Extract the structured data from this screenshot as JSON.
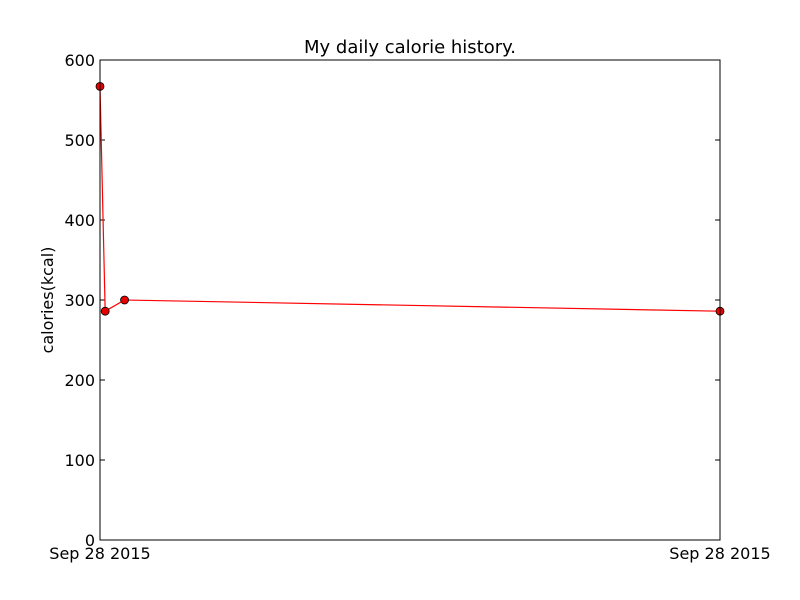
{
  "chart_data": {
    "type": "line",
    "title": "My daily calorie history.",
    "xlabel": "",
    "ylabel": "calories(kcal)",
    "ylim": [
      0,
      600
    ],
    "yticks": [
      0,
      100,
      200,
      300,
      400,
      500,
      600
    ],
    "xlim": [
      "2015-09-28T00:00:00",
      "2015-09-28T23:59:00"
    ],
    "xticks": [
      {
        "value": "2015-09-28T00:00:00",
        "label": "Sep 28 2015"
      },
      {
        "value": "2015-09-28T23:59:00",
        "label": "Sep 28 2015"
      }
    ],
    "grid": false,
    "series": [
      {
        "color": "#ff0000",
        "marker_color": "#e60000",
        "x": [
          "2015-09-28T00:00:00",
          "2015-09-28T00:12:00",
          "2015-09-28T00:57:00",
          "2015-09-28T23:59:00"
        ],
        "y": [
          567,
          286,
          300,
          286
        ]
      }
    ]
  }
}
